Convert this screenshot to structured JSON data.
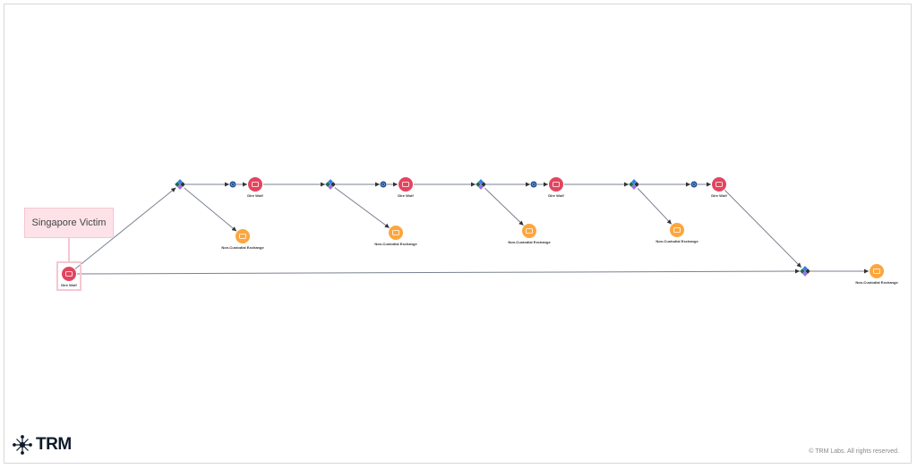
{
  "callout": {
    "label": "Singapore Victim"
  },
  "nodes": {
    "victim": {
      "label": "Dire Wolf",
      "type": "wallet"
    },
    "wallets": [
      {
        "label": "Dire Wolf"
      },
      {
        "label": "Dire Wolf"
      },
      {
        "label": "Dire Wolf"
      },
      {
        "label": "Dire Wolf"
      }
    ],
    "exchanges": [
      {
        "label": "Non-Custodial Exchange"
      },
      {
        "label": "Non-Custodial Exchange"
      },
      {
        "label": "Non-Custodial Exchange"
      },
      {
        "label": "Non-Custodial Exchange"
      },
      {
        "label": "Non-Custodial Exchange"
      }
    ]
  },
  "colors": {
    "wallet": "#e2455f",
    "exchange": "#fca63e",
    "bridge": "#1e4f8f",
    "highlight": "#f6c6d1",
    "edge": "#7a8190"
  },
  "footer": {
    "logo": "TRM",
    "copyright": "© TRM Labs. All rights reserved."
  }
}
